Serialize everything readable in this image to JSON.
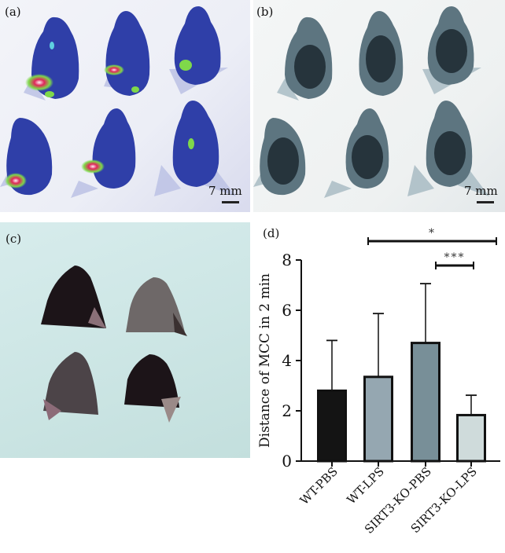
{
  "panels": {
    "a": {
      "label": "(a)",
      "scale_label": "7 mm",
      "description": "fluorescence imaging of six mouse heads"
    },
    "b": {
      "label": "(b)",
      "scale_label": "7 mm",
      "description": "grayscale X-ray images of six mouse heads"
    },
    "c": {
      "label": "(c)",
      "description": "photograph of four excised mouse heads"
    },
    "d": {
      "label": "(d)"
    }
  },
  "colors": {
    "fluor_body": "#2f3fa8",
    "fluor_green": "#7fd84a",
    "fluor_red": "#e0265a",
    "xray_body": "#2d3b44",
    "bar_wt_pbs": "#141414",
    "bar_wt_lps": "#95a7b1",
    "bar_ko_pbs": "#788f98",
    "bar_ko_lps": "#cfdbdb"
  },
  "chart_data": {
    "type": "bar",
    "title": "",
    "xlabel": "",
    "ylabel": "Distance of MCC in 2 min",
    "categories": [
      "WT-PBS",
      "WT-LPS",
      "SIRT3-KO-PBS",
      "SIRT3-KO-LPS"
    ],
    "values": [
      2.8,
      3.35,
      4.7,
      1.83
    ],
    "error_upper": [
      4.8,
      5.87,
      7.06,
      2.62
    ],
    "ylim": [
      0,
      8
    ],
    "yticks": [
      "0",
      "2",
      "4",
      "6",
      "8"
    ],
    "grid": false,
    "legend": null,
    "annotations": [
      {
        "text": "*",
        "from": "WT-LPS",
        "to": "SIRT3-KO-LPS (beyond)"
      },
      {
        "text": "***",
        "from": "SIRT3-KO-PBS",
        "to": "SIRT3-KO-LPS"
      }
    ]
  }
}
